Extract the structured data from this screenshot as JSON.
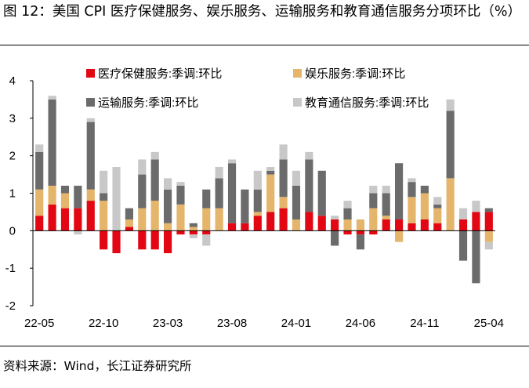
{
  "title": "图 12：美国 CPI 医疗保健服务、娱乐服务、运输服务和教育通信服务分项环比（%）",
  "source": "资料来源：Wind，长江证券研究所",
  "chart_data": {
    "type": "bar",
    "stacked": true,
    "legend_position": "top",
    "ylim": [
      -2,
      4
    ],
    "yticks": [
      "4",
      "3",
      "2",
      "1",
      "0",
      "-1",
      "-2"
    ],
    "categories": [
      "22-05",
      "22-06",
      "22-07",
      "22-08",
      "22-09",
      "22-10",
      "22-11",
      "22-12",
      "23-01",
      "23-02",
      "23-03",
      "23-04",
      "23-05",
      "23-06",
      "23-07",
      "23-08",
      "23-09",
      "23-10",
      "23-11",
      "23-12",
      "24-01",
      "24-02",
      "24-03",
      "24-04",
      "24-05",
      "24-06",
      "24-07",
      "24-08",
      "24-09",
      "24-10",
      "24-11",
      "24-12",
      "25-01",
      "25-02",
      "25-03",
      "25-04"
    ],
    "xtick_labels": [
      "22-05",
      "22-10",
      "23-03",
      "23-08",
      "24-01",
      "24-06",
      "24-11",
      "25-04"
    ],
    "series": [
      {
        "name": "医疗保健服务:季调:环比",
        "color": "#e30613",
        "values": [
          0.4,
          0.7,
          0.6,
          0.6,
          0.8,
          -0.5,
          -0.6,
          0.1,
          -0.5,
          -0.5,
          -0.6,
          -0.1,
          -0.1,
          -0.1,
          0.0,
          0.2,
          0.2,
          0.4,
          0.5,
          0.6,
          0.0,
          0.5,
          0.4,
          0.3,
          -0.1,
          -0.1,
          -0.1,
          0.3,
          0.3,
          0.2,
          0.3,
          0.2,
          0.0,
          0.3,
          0.5,
          0.5
        ]
      },
      {
        "name": "娱乐服务:季调:环比",
        "color": "#e4b56b",
        "values": [
          0.7,
          0.5,
          0.4,
          0.0,
          0.3,
          0.8,
          0.0,
          0.2,
          0.6,
          0.8,
          0.2,
          0.7,
          0.1,
          0.6,
          0.6,
          0.0,
          0.0,
          0.1,
          1.0,
          0.3,
          0.3,
          0.0,
          0.0,
          0.0,
          0.3,
          0.3,
          0.6,
          0.1,
          -0.3,
          0.7,
          0.7,
          0.4,
          1.4,
          0.0,
          0.0,
          -0.3
        ]
      },
      {
        "name": "运输服务:季调:环比",
        "color": "#6b6b6b",
        "values": [
          1.0,
          2.3,
          0.2,
          0.6,
          1.8,
          0.2,
          0.0,
          0.3,
          0.9,
          1.1,
          0.9,
          0.5,
          0.1,
          0.5,
          0.8,
          1.6,
          0.9,
          0.6,
          0.1,
          1.0,
          0.9,
          1.4,
          1.2,
          -0.4,
          0.3,
          -0.4,
          0.4,
          0.6,
          1.5,
          0.4,
          0.2,
          0.1,
          1.8,
          -0.8,
          -1.4,
          0.1
        ]
      },
      {
        "name": "教育通信服务:季调:环比",
        "color": "#c8c8c8",
        "values": [
          0.2,
          0.1,
          0.0,
          -0.1,
          0.1,
          0.6,
          1.7,
          0.0,
          0.4,
          0.2,
          0.3,
          0.1,
          -0.1,
          -0.3,
          0.3,
          0.1,
          0.0,
          0.5,
          0.1,
          0.4,
          0.4,
          0.2,
          0.0,
          0.1,
          0.2,
          0.0,
          0.2,
          0.2,
          0.0,
          0.1,
          0.0,
          0.2,
          0.3,
          0.3,
          0.3,
          -0.2
        ]
      }
    ]
  }
}
